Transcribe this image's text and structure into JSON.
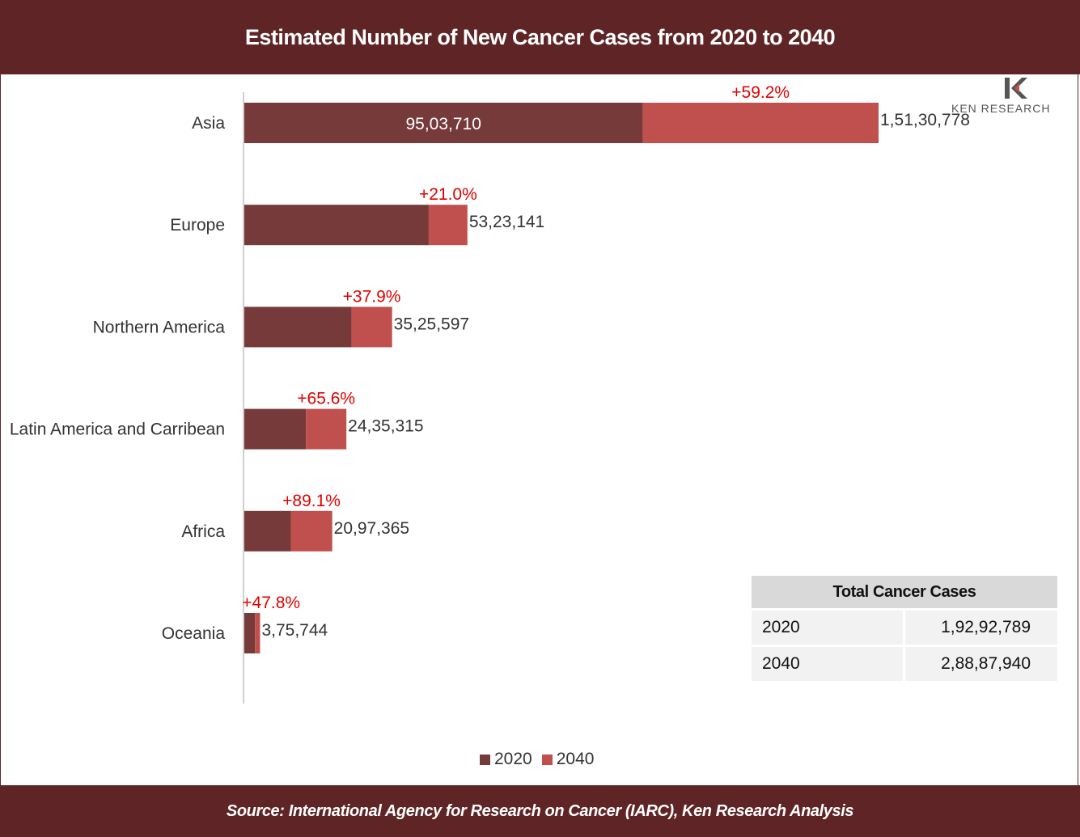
{
  "title": "Estimated Number of New Cancer Cases from 2020 to 2040",
  "source": "Source: International Agency for Research on Cancer (IARC), Ken Research Analysis",
  "logo": {
    "mark": "K",
    "text": "KEN RESEARCH"
  },
  "colors": {
    "header": "#5f2425",
    "s2020": "#763a3a",
    "s2040": "#c0504d",
    "growth": "#e00000"
  },
  "chart_data": {
    "type": "bar",
    "orientation": "horizontal",
    "stacked": true,
    "categories": [
      "Asia",
      "Europe",
      "Northern America",
      "Latin America and Carribean",
      "Africa",
      "Oceania"
    ],
    "series": [
      {
        "name": "2020",
        "values": [
          9503710,
          4399000,
          2556000,
          1470000,
          1109000,
          254000
        ]
      },
      {
        "name": "2040",
        "values": [
          15130778,
          5323141,
          3525597,
          2435315,
          2097365,
          375744
        ]
      }
    ],
    "total_labels": [
      "1,51,30,778",
      "53,23,141",
      "35,25,597",
      "24,35,315",
      "20,97,365",
      "3,75,744"
    ],
    "inner_labels": [
      "95,03,710",
      "",
      "",
      "",
      "",
      ""
    ],
    "growth_labels": [
      "+59.2%",
      "+21.0%",
      "+37.9%",
      "+65.6%",
      "+89.1%",
      "+47.8%"
    ],
    "legend": {
      "position": "bottom",
      "items": [
        "2020",
        "2040"
      ]
    },
    "grid": false
  },
  "totals_table": {
    "header": "Total Cancer Cases",
    "rows": [
      {
        "year": "2020",
        "value": "1,92,92,789"
      },
      {
        "year": "2040",
        "value": "2,88,87,940"
      }
    ]
  }
}
